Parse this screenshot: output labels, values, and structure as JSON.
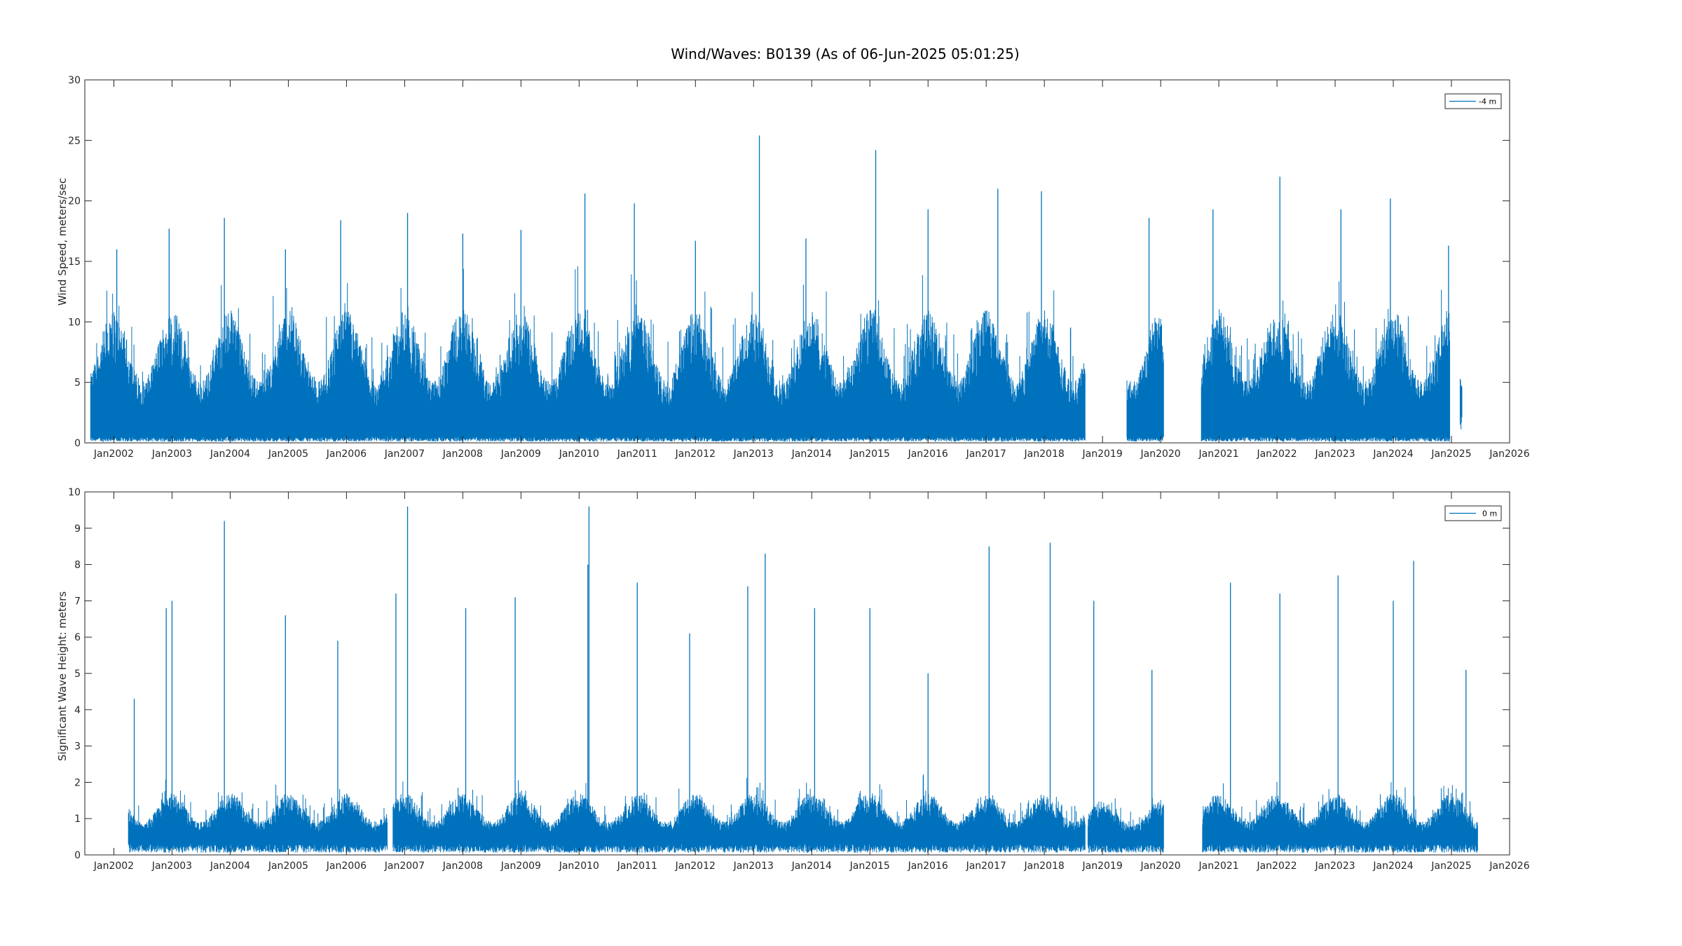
{
  "figure": {
    "title": "Wind/Waves: B0139 (As of 06-Jun-2025 05:01:25)"
  },
  "colors": {
    "series": "#0072BD",
    "axis": "#262626",
    "background": "#ffffff"
  },
  "chart_data": [
    {
      "type": "line",
      "ylabel": "Wind Speed, meters/sec",
      "xlabel": "",
      "ylim": [
        0,
        30
      ],
      "yticks": [
        0,
        5,
        10,
        15,
        20,
        25,
        30
      ],
      "xlim": [
        2001.5,
        2026.0
      ],
      "xticks": [
        2002,
        2003,
        2004,
        2005,
        2006,
        2007,
        2008,
        2009,
        2010,
        2011,
        2012,
        2013,
        2014,
        2015,
        2016,
        2017,
        2018,
        2019,
        2020,
        2021,
        2022,
        2023,
        2024,
        2025,
        2026
      ],
      "xtick_labels": [
        "Jan2002",
        "Jan2003",
        "Jan2004",
        "Jan2005",
        "Jan2006",
        "Jan2007",
        "Jan2008",
        "Jan2009",
        "Jan2010",
        "Jan2011",
        "Jan2012",
        "Jan2013",
        "Jan2014",
        "Jan2015",
        "Jan2016",
        "Jan2017",
        "Jan2018",
        "Jan2019",
        "Jan2020",
        "Jan2021",
        "Jan2022",
        "Jan2023",
        "Jan2024",
        "Jan2025",
        "Jan2026"
      ],
      "grid": false,
      "legend": {
        "placement": "top-right",
        "entries": [
          "-4 m"
        ]
      },
      "series": [
        {
          "name": "-4 m",
          "segments": [
            {
              "start": 2001.6,
              "end": 2018.7,
              "typical_high": 11.0,
              "typical_low": 0.5
            },
            {
              "start": 2019.42,
              "end": 2020.05,
              "typical_high": 11.0,
              "typical_low": 0.5
            },
            {
              "start": 2020.7,
              "end": 2024.97,
              "typical_high": 11.0,
              "typical_low": 0.5
            },
            {
              "start": 2025.15,
              "end": 2025.18,
              "typical_high": 5.8,
              "typical_low": 3.6
            }
          ],
          "peaks": [
            {
              "x": 2002.05,
              "y": 16.0
            },
            {
              "x": 2002.95,
              "y": 17.7
            },
            {
              "x": 2003.9,
              "y": 18.6
            },
            {
              "x": 2004.95,
              "y": 16.0
            },
            {
              "x": 2005.9,
              "y": 18.4
            },
            {
              "x": 2007.05,
              "y": 19.0
            },
            {
              "x": 2008.0,
              "y": 17.3
            },
            {
              "x": 2009.0,
              "y": 17.6
            },
            {
              "x": 2010.1,
              "y": 20.6
            },
            {
              "x": 2010.95,
              "y": 19.8
            },
            {
              "x": 2012.0,
              "y": 16.7
            },
            {
              "x": 2013.1,
              "y": 25.4
            },
            {
              "x": 2013.9,
              "y": 16.9
            },
            {
              "x": 2015.1,
              "y": 24.2
            },
            {
              "x": 2016.0,
              "y": 19.3
            },
            {
              "x": 2017.2,
              "y": 21.0
            },
            {
              "x": 2017.95,
              "y": 20.8
            },
            {
              "x": 2019.8,
              "y": 18.6
            },
            {
              "x": 2020.9,
              "y": 19.3
            },
            {
              "x": 2022.05,
              "y": 22.0
            },
            {
              "x": 2023.1,
              "y": 19.3
            },
            {
              "x": 2023.95,
              "y": 20.2
            },
            {
              "x": 2024.95,
              "y": 16.3
            }
          ]
        }
      ]
    },
    {
      "type": "line",
      "ylabel": "Significant Wave Height:  meters",
      "xlabel": "",
      "ylim": [
        0,
        10
      ],
      "yticks": [
        0,
        1,
        2,
        3,
        4,
        5,
        6,
        7,
        8,
        9,
        10
      ],
      "xlim": [
        2001.5,
        2026.0
      ],
      "xticks": [
        2002,
        2003,
        2004,
        2005,
        2006,
        2007,
        2008,
        2009,
        2010,
        2011,
        2012,
        2013,
        2014,
        2015,
        2016,
        2017,
        2018,
        2019,
        2020,
        2021,
        2022,
        2023,
        2024,
        2025,
        2026
      ],
      "xtick_labels": [
        "Jan2002",
        "Jan2003",
        "Jan2004",
        "Jan2005",
        "Jan2006",
        "Jan2007",
        "Jan2008",
        "Jan2009",
        "Jan2010",
        "Jan2011",
        "Jan2012",
        "Jan2013",
        "Jan2014",
        "Jan2015",
        "Jan2016",
        "Jan2017",
        "Jan2018",
        "Jan2019",
        "Jan2020",
        "Jan2021",
        "Jan2022",
        "Jan2023",
        "Jan2024",
        "Jan2025",
        "Jan2026"
      ],
      "grid": false,
      "legend": {
        "placement": "top-right",
        "entries": [
          "0 m"
        ]
      },
      "series": [
        {
          "name": "0 m",
          "segments": [
            {
              "start": 2002.25,
              "end": 2006.7,
              "typical_high": 1.7,
              "typical_low": 0.3
            },
            {
              "start": 2006.8,
              "end": 2018.7,
              "typical_high": 1.7,
              "typical_low": 0.3
            },
            {
              "start": 2018.75,
              "end": 2020.05,
              "typical_high": 1.5,
              "typical_low": 0.3
            },
            {
              "start": 2020.72,
              "end": 2025.45,
              "typical_high": 1.7,
              "typical_low": 0.3
            }
          ],
          "peaks": [
            {
              "x": 2002.35,
              "y": 4.3
            },
            {
              "x": 2002.9,
              "y": 6.8
            },
            {
              "x": 2003.0,
              "y": 7.0
            },
            {
              "x": 2003.9,
              "y": 9.2
            },
            {
              "x": 2004.95,
              "y": 6.6
            },
            {
              "x": 2005.85,
              "y": 5.9
            },
            {
              "x": 2006.85,
              "y": 7.2
            },
            {
              "x": 2007.05,
              "y": 9.6
            },
            {
              "x": 2008.05,
              "y": 6.8
            },
            {
              "x": 2008.9,
              "y": 7.1
            },
            {
              "x": 2010.15,
              "y": 8.0
            },
            {
              "x": 2010.17,
              "y": 9.6
            },
            {
              "x": 2011.0,
              "y": 7.5
            },
            {
              "x": 2011.9,
              "y": 6.1
            },
            {
              "x": 2012.9,
              "y": 7.4
            },
            {
              "x": 2013.2,
              "y": 8.3
            },
            {
              "x": 2014.05,
              "y": 6.8
            },
            {
              "x": 2015.0,
              "y": 6.8
            },
            {
              "x": 2016.0,
              "y": 5.0
            },
            {
              "x": 2017.05,
              "y": 8.5
            },
            {
              "x": 2018.1,
              "y": 8.6
            },
            {
              "x": 2018.85,
              "y": 7.0
            },
            {
              "x": 2019.85,
              "y": 5.1
            },
            {
              "x": 2021.2,
              "y": 7.5
            },
            {
              "x": 2022.05,
              "y": 7.2
            },
            {
              "x": 2023.05,
              "y": 7.7
            },
            {
              "x": 2024.0,
              "y": 7.0
            },
            {
              "x": 2024.35,
              "y": 8.1
            },
            {
              "x": 2025.25,
              "y": 5.1
            }
          ]
        }
      ]
    }
  ]
}
